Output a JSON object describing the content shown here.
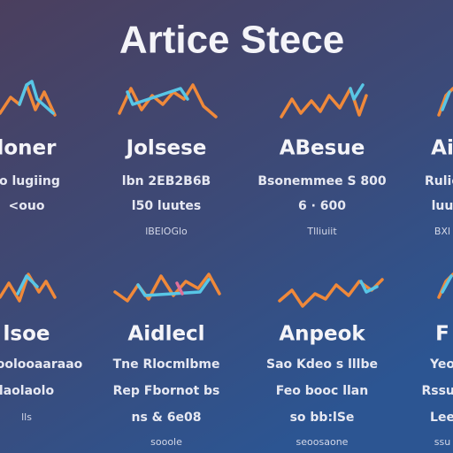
{
  "title": "Artice Stece",
  "cards": [
    {
      "heading": "loner",
      "lines": [
        "ro lugiing",
        "<ouo"
      ]
    },
    {
      "heading": "Jolsese",
      "lines": [
        "lbn 2EB2B6B",
        "l50 luutes",
        "lBElOGlo"
      ]
    },
    {
      "heading": "ABesue",
      "lines": [
        "Bsonemmee S 800",
        "6 · 600",
        "Tlliuiit"
      ]
    },
    {
      "heading": "Ai",
      "lines": [
        "Rulio",
        "luu",
        "BXl"
      ]
    },
    {
      "heading": "lsoe",
      "lines": [
        "lomoolooaaraao",
        "laolaolo",
        "lls"
      ]
    },
    {
      "heading": "Aidlecl",
      "lines": [
        "Tne Rlocmlbme",
        "Rep Fbornot bs",
        "ns & 6e08",
        "sooole"
      ]
    },
    {
      "heading": "Anpeok",
      "lines": [
        "Sao Kdeo s lllbe",
        "Feo booc llan",
        "so bb:lSe",
        "seoosaone"
      ]
    },
    {
      "heading": "F",
      "lines": [
        "Yeo",
        "Rssuii",
        "Lee",
        "ssu"
      ]
    }
  ]
}
